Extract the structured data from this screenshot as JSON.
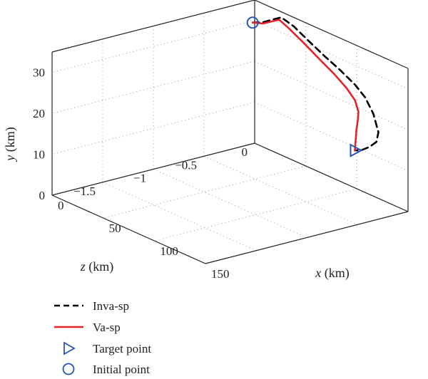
{
  "chart_data": {
    "type": "line3d",
    "xlabel_var": "x",
    "xlabel_unit": " (km)",
    "ylabel_var": "y",
    "ylabel_unit": " (km)",
    "zlabel_var": "z",
    "zlabel_unit": " (km)",
    "xlim": [
      0,
      150
    ],
    "ylim": [
      0,
      35
    ],
    "zlim": [
      -2,
      0
    ],
    "x_ticks": [
      {
        "v": 0,
        "label": "0"
      },
      {
        "v": 50,
        "label": "50"
      },
      {
        "v": 100,
        "label": "100"
      },
      {
        "v": 150,
        "label": "150"
      }
    ],
    "y_ticks": [
      {
        "v": 0,
        "label": "0"
      },
      {
        "v": 10,
        "label": "10"
      },
      {
        "v": 20,
        "label": "20"
      },
      {
        "v": 30,
        "label": "30"
      }
    ],
    "z_ticks": [
      {
        "v": 0,
        "label": "0"
      },
      {
        "v": -0.5,
        "label": "−0.5"
      },
      {
        "v": -1,
        "label": "−1"
      },
      {
        "v": -1.5,
        "label": "−1.5"
      }
    ],
    "grid": true,
    "legend_position": "below",
    "series": [
      {
        "name": "Inva-sp",
        "color": "#000000",
        "style": "dashed",
        "points": [
          [
            0,
            29.6,
            -0.02
          ],
          [
            10,
            30.8,
            -0.02
          ],
          [
            20,
            32.6,
            -0.02
          ],
          [
            28,
            34.0,
            -0.02
          ],
          [
            40,
            33.2,
            -0.02
          ],
          [
            55,
            31.2,
            -0.02
          ],
          [
            70,
            29.3,
            -0.02
          ],
          [
            85,
            27.6,
            -0.02
          ],
          [
            100,
            25.6,
            -0.02
          ],
          [
            110,
            23.6,
            -0.02
          ],
          [
            118,
            20.5,
            -0.02
          ],
          [
            123,
            16.5,
            -0.02
          ],
          [
            121,
            13.9,
            -0.02
          ],
          [
            114,
            11.9,
            -0.02
          ],
          [
            106,
            10.2,
            -0.02
          ],
          [
            100,
            9.5,
            -0.02
          ]
        ]
      },
      {
        "name": "Va-sp",
        "color": "#e3242b",
        "style": "solid",
        "points": [
          [
            0,
            29.6,
            -0.02
          ],
          [
            10,
            30.5,
            -0.02
          ],
          [
            20,
            32.2,
            -0.02
          ],
          [
            26,
            33.2,
            -0.02
          ],
          [
            35,
            32.2,
            -0.02
          ],
          [
            50,
            30.2,
            -0.02
          ],
          [
            65,
            28.0,
            -0.02
          ],
          [
            80,
            25.9,
            -0.02
          ],
          [
            92,
            23.8,
            -0.02
          ],
          [
            100,
            21.8,
            -0.02
          ],
          [
            103.5,
            19.4,
            -0.02
          ],
          [
            103,
            17.5,
            -0.02
          ],
          [
            101.5,
            14.5,
            -0.02
          ],
          [
            100,
            9.5,
            -0.02
          ]
        ]
      }
    ],
    "markers": [
      {
        "name": "Target point",
        "symbol": "triangle-right",
        "color": "#2a55b5",
        "point": [
          100,
          9.5,
          -0.02
        ]
      },
      {
        "name": "Initial point",
        "symbol": "circle",
        "color": "#2a55b5",
        "point": [
          0,
          29.6,
          -0.02
        ]
      }
    ]
  }
}
